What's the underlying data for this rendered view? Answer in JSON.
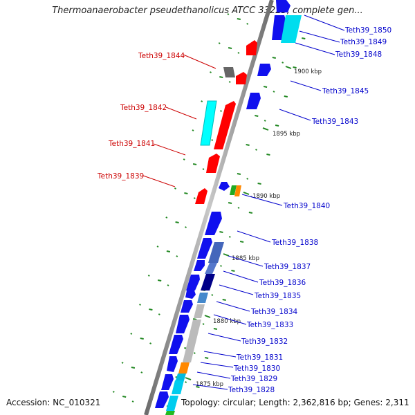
{
  "title": "Thermoanaerobacter pseudethanolicus ATCC 33223, complete gen...",
  "accession": "Accession: NC_010321",
  "topology": "Topology: circular; Length: 2,362,816 bp; Genes: 2,311",
  "colors": {
    "backbone": "#a0a0a0",
    "forward_label": "#0000cc",
    "reverse_label": "#cc0000",
    "tick": "#228822"
  },
  "scale_labels": [
    "1900 kbp",
    "1895 kbp",
    "-1890 kbp",
    "1885 kbp",
    "1880 kbp",
    "1875 kbp"
  ],
  "forward_genes": [
    "Teth39_1850",
    "Teth39_1849",
    "Teth39_1848",
    "Teth39_1845",
    "Teth39_1843",
    "Teth39_1840",
    "Teth39_1838",
    "Teth39_1837",
    "Teth39_1836",
    "Teth39_1835",
    "Teth39_1834",
    "Teth39_1833",
    "Teth39_1832",
    "Teth39_1831",
    "Teth39_1830",
    "Teth39_1829",
    "Teth39_1828"
  ],
  "reverse_genes": [
    "Teth39_1844",
    "Teth39_1842",
    "Teth39_1841",
    "Teth39_1839"
  ]
}
